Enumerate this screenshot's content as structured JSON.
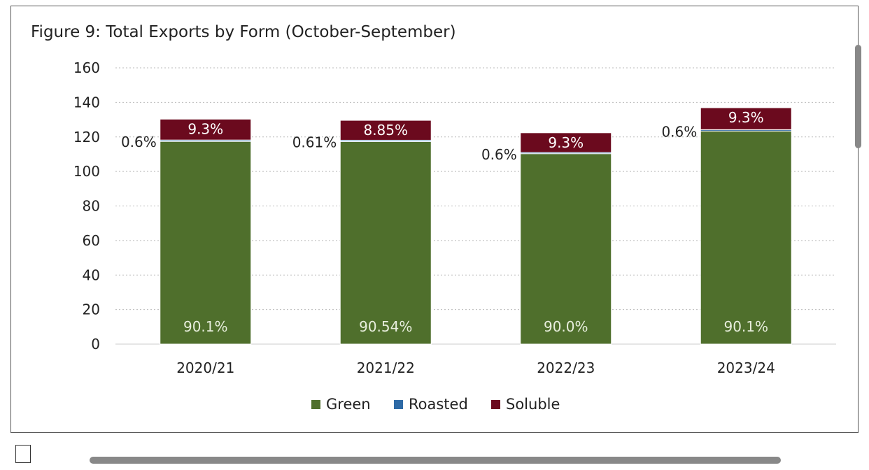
{
  "chart_data": {
    "type": "bar",
    "stacked": true,
    "title": "Figure 9: Total Exports by Form (October-September)",
    "categories": [
      "2020/21",
      "2021/22",
      "2022/23",
      "2023/24"
    ],
    "series": [
      {
        "name": "Green",
        "color": "#4f6f2c",
        "values": [
          117.4,
          117.3,
          110.3,
          123.4
        ],
        "labels": [
          "90.1%",
          "90.54%",
          "90.0%",
          "90.1%"
        ]
      },
      {
        "name": "Roasted",
        "color": "#2e6aa6",
        "values": [
          0.8,
          0.8,
          0.7,
          0.8
        ],
        "labels": [
          "0.6%",
          "0.61%",
          "0.6%",
          "0.6%"
        ]
      },
      {
        "name": "Soluble",
        "color": "#6b0a1e",
        "values": [
          12.1,
          11.5,
          11.4,
          12.7
        ],
        "labels": [
          "9.3%",
          "8.85%",
          "9.3%",
          "9.3%"
        ]
      }
    ],
    "yticks": [
      0,
      20,
      40,
      60,
      80,
      100,
      120,
      140,
      160
    ],
    "ylim": [
      0,
      160
    ],
    "grid": true,
    "legend": "bottom"
  }
}
